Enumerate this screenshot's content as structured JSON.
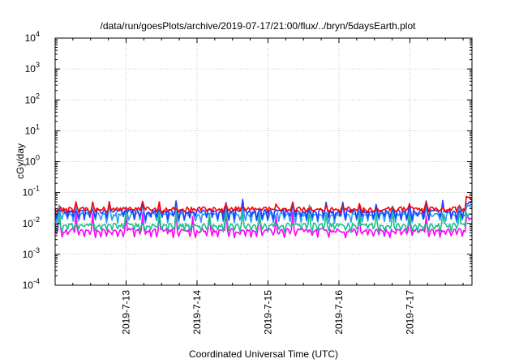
{
  "chart_data": {
    "type": "line",
    "title": "/data/run/goesPlots/archive/2019-07-17/21:00/flux/../bryn/5daysEarth.plot",
    "xlabel": "Coordinated Universal Time (UTC)",
    "ylabel": "cGy/day",
    "y_scale": "log",
    "ylim": [
      0.0001,
      10000
    ],
    "y_ticks": [
      {
        "base": "10",
        "exp": "-4"
      },
      {
        "base": "10",
        "exp": "-3"
      },
      {
        "base": "10",
        "exp": "-2"
      },
      {
        "base": "10",
        "exp": "-1"
      },
      {
        "base": "10",
        "exp": "0"
      },
      {
        "base": "10",
        "exp": "1"
      },
      {
        "base": "10",
        "exp": "2"
      },
      {
        "base": "10",
        "exp": "3"
      },
      {
        "base": "10",
        "exp": "4"
      }
    ],
    "xlim": [
      "2019-07-12T00:00",
      "2019-07-17T21:00"
    ],
    "x_ticks": [
      "2019-7-13",
      "2019-7-14",
      "2019-7-15",
      "2019-7-16",
      "2019-7-17"
    ],
    "grid": true,
    "series": [
      {
        "color": "#ff0000",
        "base": 0.03,
        "low": 0.025,
        "spike": 0.045,
        "end_spike": 0.07
      },
      {
        "color": "#1c3fff",
        "base": 0.025,
        "low": 0.015,
        "spike": 0.05,
        "end_spike": 0.05
      },
      {
        "color": "#2c9cf5",
        "base": 0.02,
        "low": 0.012,
        "spike": 0.04,
        "end_spike": 0.035
      },
      {
        "color": "#1cbf8c",
        "base": 0.009,
        "low": 0.006,
        "spike": 0.025,
        "end_spike": 0.02
      },
      {
        "color": "#ff00ff",
        "base": 0.006,
        "low": 0.004,
        "spike": 0.02,
        "end_spike": 0.015
      }
    ]
  }
}
